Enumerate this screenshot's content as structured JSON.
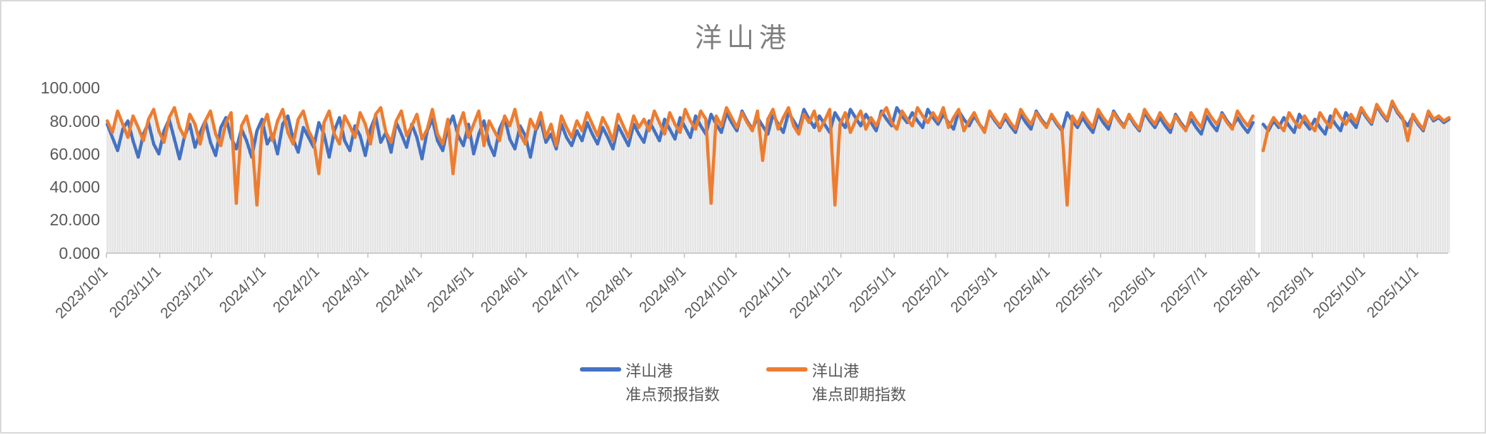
{
  "title": "洋山港",
  "legend": [
    {
      "label_line1": "洋山港",
      "label_line2": "准点预报指数",
      "color": "#4472C4"
    },
    {
      "label_line1": "洋山港",
      "label_line2": "准点即期指数",
      "color": "#ED7D31"
    }
  ],
  "colors": {
    "series_forecast": "#4472C4",
    "series_spot": "#ED7D31",
    "droplines": "#D9D9D9",
    "axis_line": "#BFBFBF",
    "tick_text": "#595959",
    "title_text": "#7F7F7F"
  },
  "chart_data": {
    "type": "line",
    "title": "洋山港",
    "start_date": "2023/10/1",
    "end_date": "2025/11/19",
    "sample_step_days": 3,
    "ylim": [
      0,
      100
    ],
    "grid": false,
    "legend_position": "bottom",
    "y_ticks": [
      "0.000",
      "20.000",
      "40.000",
      "60.000",
      "80.000",
      "100.000"
    ],
    "x_tick_labels": [
      "2023/10/1",
      "2023/11/1",
      "2023/12/1",
      "2024/1/1",
      "2024/2/1",
      "2024/3/1",
      "2024/4/1",
      "2024/5/1",
      "2024/6/1",
      "2024/7/1",
      "2024/8/1",
      "2024/9/1",
      "2024/10/1",
      "2024/11/1",
      "2024/12/1",
      "2025/1/1",
      "2025/2/1",
      "2025/3/1",
      "2025/4/1",
      "2025/5/1",
      "2025/6/1",
      "2025/7/1",
      "2025/8/1",
      "2025/9/1",
      "2025/10/1",
      "2025/11/1"
    ],
    "x_tick_day_offsets": [
      0,
      31,
      61,
      92,
      123,
      152,
      183,
      213,
      244,
      274,
      305,
      336,
      366,
      397,
      427,
      458,
      489,
      517,
      548,
      578,
      609,
      639,
      670,
      701,
      731,
      762
    ],
    "data_gap_date": "2025/8/1",
    "droplines": true,
    "series": [
      {
        "name": "洋山港准点预报指数",
        "color": "#4472C4",
        "values": [
          78,
          70,
          62,
          75,
          80,
          68,
          58,
          72,
          79,
          66,
          60,
          74,
          81,
          69,
          57,
          71,
          78,
          64,
          73,
          80,
          67,
          59,
          76,
          82,
          70,
          63,
          75,
          68,
          58,
          74,
          81,
          66,
          72,
          60,
          78,
          83,
          69,
          61,
          76,
          70,
          64,
          79,
          72,
          58,
          74,
          82,
          68,
          62,
          77,
          71,
          59,
          75,
          83,
          67,
          73,
          61,
          79,
          72,
          64,
          78,
          70,
          57,
          74,
          81,
          68,
          62,
          76,
          83,
          71,
          65,
          78,
          60,
          72,
          80,
          66,
          59,
          75,
          82,
          69,
          63,
          77,
          71,
          58,
          74,
          80,
          67,
          72,
          63,
          78,
          70,
          65,
          74,
          68,
          79,
          72,
          66,
          76,
          70,
          63,
          77,
          71,
          65,
          78,
          72,
          67,
          80,
          74,
          68,
          81,
          75,
          69,
          82,
          76,
          70,
          83,
          77,
          72,
          84,
          78,
          73,
          85,
          79,
          74,
          86,
          80,
          75,
          82,
          77,
          72,
          84,
          78,
          73,
          85,
          80,
          75,
          87,
          81,
          76,
          83,
          78,
          73,
          85,
          80,
          76,
          87,
          82,
          77,
          84,
          79,
          74,
          86,
          81,
          77,
          88,
          83,
          79,
          85,
          80,
          76,
          87,
          82,
          78,
          84,
          79,
          75,
          86,
          81,
          77,
          83,
          78,
          74,
          85,
          80,
          76,
          82,
          77,
          73,
          84,
          79,
          75,
          86,
          81,
          77,
          83,
          78,
          74,
          85,
          80,
          76,
          82,
          77,
          73,
          84,
          79,
          75,
          86,
          81,
          77,
          83,
          78,
          74,
          85,
          80,
          76,
          82,
          77,
          73,
          84,
          79,
          75,
          81,
          76,
          72,
          83,
          78,
          74,
          85,
          80,
          76,
          82,
          77,
          73,
          79,
          null,
          78,
          74,
          80,
          76,
          82,
          77,
          73,
          84,
          79,
          75,
          81,
          76,
          72,
          83,
          78,
          74,
          85,
          80,
          76,
          87,
          82,
          78,
          89,
          84,
          80,
          91,
          85,
          81,
          77,
          83,
          78,
          74,
          85,
          80,
          82,
          79,
          81
        ]
      },
      {
        "name": "洋山港准点即期指数",
        "color": "#ED7D31",
        "values": [
          80,
          73,
          86,
          78,
          70,
          83,
          76,
          68,
          81,
          87,
          74,
          67,
          82,
          88,
          76,
          70,
          84,
          78,
          66,
          80,
          86,
          72,
          65,
          79,
          85,
          30,
          77,
          83,
          70,
          29,
          76,
          84,
          68,
          80,
          87,
          73,
          66,
          81,
          86,
          74,
          68,
          48,
          79,
          86,
          72,
          66,
          83,
          77,
          70,
          85,
          78,
          66,
          84,
          88,
          73,
          67,
          80,
          86,
          71,
          77,
          84,
          69,
          75,
          87,
          72,
          66,
          81,
          48,
          76,
          85,
          70,
          78,
          86,
          65,
          80,
          74,
          68,
          83,
          77,
          87,
          72,
          66,
          81,
          75,
          85,
          70,
          78,
          65,
          83,
          76,
          70,
          80,
          74,
          85,
          78,
          71,
          82,
          76,
          68,
          84,
          77,
          70,
          83,
          76,
          81,
          74,
          86,
          79,
          72,
          85,
          78,
          73,
          87,
          80,
          75,
          86,
          81,
          30,
          83,
          77,
          88,
          82,
          76,
          85,
          79,
          74,
          86,
          56,
          81,
          87,
          75,
          82,
          88,
          77,
          72,
          84,
          79,
          86,
          74,
          80,
          87,
          29,
          78,
          85,
          73,
          80,
          86,
          75,
          82,
          77,
          84,
          88,
          79,
          75,
          86,
          81,
          77,
          88,
          83,
          79,
          85,
          80,
          88,
          76,
          82,
          87,
          74,
          80,
          85,
          78,
          73,
          86,
          81,
          77,
          84,
          79,
          75,
          87,
          82,
          78,
          85,
          80,
          76,
          84,
          79,
          75,
          29,
          83,
          78,
          85,
          80,
          76,
          87,
          82,
          78,
          85,
          80,
          76,
          84,
          79,
          75,
          87,
          82,
          78,
          85,
          80,
          76,
          83,
          78,
          74,
          85,
          80,
          76,
          87,
          82,
          78,
          84,
          79,
          75,
          86,
          81,
          77,
          83,
          null,
          62,
          76,
          82,
          78,
          74,
          85,
          80,
          76,
          83,
          78,
          74,
          85,
          80,
          76,
          87,
          82,
          78,
          84,
          79,
          88,
          83,
          79,
          90,
          85,
          81,
          92,
          86,
          82,
          68,
          84,
          79,
          75,
          86,
          81,
          83,
          80,
          82
        ]
      }
    ]
  }
}
